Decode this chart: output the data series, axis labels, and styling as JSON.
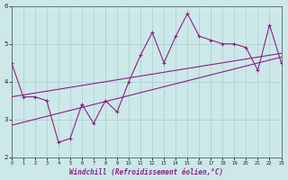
{
  "x_data": [
    0,
    1,
    2,
    3,
    4,
    5,
    6,
    7,
    8,
    9,
    10,
    11,
    12,
    13,
    14,
    15,
    16,
    17,
    18,
    19,
    20,
    21,
    22,
    23
  ],
  "y_main": [
    4.5,
    3.6,
    3.6,
    3.5,
    2.4,
    2.5,
    3.4,
    2.9,
    3.5,
    3.2,
    4.0,
    4.7,
    5.3,
    4.5,
    5.2,
    5.8,
    5.2,
    5.1,
    5.0,
    5.0,
    4.9,
    4.3,
    5.5,
    4.5
  ],
  "y_trend1_start": 2.85,
  "y_trend1_end": 4.65,
  "y_trend2_start": 3.6,
  "y_trend2_end": 4.75,
  "color": "#882288",
  "bg_color": "#cce8e8",
  "grid_color": "#aacccc",
  "xlabel": "Windchill (Refroidissement éolien,°C)",
  "xlim": [
    0,
    23
  ],
  "ylim": [
    2,
    6
  ],
  "yticks": [
    2,
    3,
    4,
    5,
    6
  ],
  "xticks": [
    0,
    1,
    2,
    3,
    4,
    5,
    6,
    7,
    8,
    9,
    10,
    11,
    12,
    13,
    14,
    15,
    16,
    17,
    18,
    19,
    20,
    21,
    22,
    23
  ]
}
